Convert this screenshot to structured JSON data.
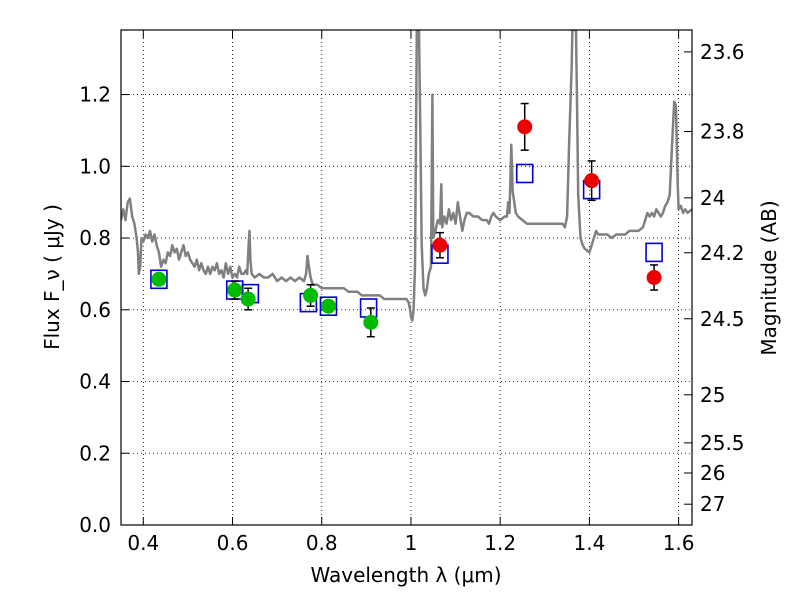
{
  "chart_data": {
    "type": "scatter",
    "title": "",
    "xlabel": "Wavelength  λ (μm)",
    "ylabel": "Flux  F_ν  ( μJy )",
    "y2label": "Magnitude (AB)",
    "xlim": [
      0.35,
      1.63
    ],
    "ylim": [
      0.0,
      1.38
    ],
    "grid": true,
    "legend": "none",
    "x_ticks": [
      0.4,
      0.6,
      0.8,
      1.0,
      1.2,
      1.4,
      1.6
    ],
    "x_tick_labels": [
      "0.4",
      "0.6",
      "0.8",
      "1",
      "1.2",
      "1.4",
      "1.6"
    ],
    "y_ticks": [
      0.0,
      0.2,
      0.4,
      0.6,
      0.8,
      1.0,
      1.2
    ],
    "y_tick_labels": [
      "0.0",
      "0.2",
      "0.4",
      "0.6",
      "0.8",
      "1.0",
      "1.2"
    ],
    "y2_ticks": [
      {
        "label": "23.6",
        "flux": 1.319
      },
      {
        "label": "23.8",
        "flux": 1.097
      },
      {
        "label": "24",
        "flux": 0.912
      },
      {
        "label": "24.2",
        "flux": 0.759
      },
      {
        "label": "24.5",
        "flux": 0.575
      },
      {
        "label": "25",
        "flux": 0.363
      },
      {
        "label": "25.5",
        "flux": 0.229
      },
      {
        "label": "26",
        "flux": 0.145
      },
      {
        "label": "27",
        "flux": 0.058
      }
    ],
    "colors": {
      "model": "#808080",
      "model_points": "#0000dd",
      "green": "#00bb00",
      "red": "#ee0000",
      "error": "#000000"
    },
    "model_spectrum": [
      [
        0.35,
        0.85
      ],
      [
        0.355,
        0.88
      ],
      [
        0.36,
        0.85
      ],
      [
        0.365,
        0.9
      ],
      [
        0.37,
        0.91
      ],
      [
        0.375,
        0.86
      ],
      [
        0.38,
        0.84
      ],
      [
        0.385,
        0.8
      ],
      [
        0.388,
        0.76
      ],
      [
        0.39,
        0.7
      ],
      [
        0.393,
        0.72
      ],
      [
        0.396,
        0.8
      ],
      [
        0.4,
        0.79
      ],
      [
        0.405,
        0.81
      ],
      [
        0.41,
        0.8
      ],
      [
        0.415,
        0.82
      ],
      [
        0.42,
        0.79
      ],
      [
        0.425,
        0.81
      ],
      [
        0.43,
        0.78
      ],
      [
        0.435,
        0.76
      ],
      [
        0.44,
        0.72
      ],
      [
        0.445,
        0.74
      ],
      [
        0.45,
        0.73
      ],
      [
        0.455,
        0.76
      ],
      [
        0.46,
        0.75
      ],
      [
        0.465,
        0.78
      ],
      [
        0.47,
        0.76
      ],
      [
        0.475,
        0.77
      ],
      [
        0.48,
        0.74
      ],
      [
        0.485,
        0.76
      ],
      [
        0.49,
        0.78
      ],
      [
        0.495,
        0.75
      ],
      [
        0.5,
        0.76
      ],
      [
        0.505,
        0.74
      ],
      [
        0.51,
        0.73
      ],
      [
        0.515,
        0.72
      ],
      [
        0.52,
        0.74
      ],
      [
        0.525,
        0.71
      ],
      [
        0.53,
        0.73
      ],
      [
        0.535,
        0.71
      ],
      [
        0.54,
        0.7
      ],
      [
        0.545,
        0.72
      ],
      [
        0.55,
        0.7
      ],
      [
        0.555,
        0.72
      ],
      [
        0.56,
        0.71
      ],
      [
        0.565,
        0.73
      ],
      [
        0.57,
        0.7
      ],
      [
        0.575,
        0.71
      ],
      [
        0.58,
        0.69
      ],
      [
        0.585,
        0.73
      ],
      [
        0.59,
        0.7
      ],
      [
        0.595,
        0.72
      ],
      [
        0.6,
        0.69
      ],
      [
        0.605,
        0.7
      ],
      [
        0.61,
        0.69
      ],
      [
        0.615,
        0.72
      ],
      [
        0.62,
        0.7
      ],
      [
        0.625,
        0.7
      ],
      [
        0.63,
        0.71
      ],
      [
        0.633,
        0.7
      ],
      [
        0.636,
        0.78
      ],
      [
        0.638,
        0.82
      ],
      [
        0.64,
        0.74
      ],
      [
        0.643,
        0.7
      ],
      [
        0.65,
        0.69
      ],
      [
        0.66,
        0.7
      ],
      [
        0.67,
        0.69
      ],
      [
        0.68,
        0.69
      ],
      [
        0.69,
        0.7
      ],
      [
        0.7,
        0.68
      ],
      [
        0.71,
        0.69
      ],
      [
        0.72,
        0.68
      ],
      [
        0.73,
        0.69
      ],
      [
        0.74,
        0.68
      ],
      [
        0.75,
        0.69
      ],
      [
        0.76,
        0.68
      ],
      [
        0.765,
        0.7
      ],
      [
        0.768,
        0.75
      ],
      [
        0.77,
        0.73
      ],
      [
        0.775,
        0.69
      ],
      [
        0.78,
        0.67
      ],
      [
        0.79,
        0.67
      ],
      [
        0.8,
        0.66
      ],
      [
        0.81,
        0.66
      ],
      [
        0.82,
        0.66
      ],
      [
        0.83,
        0.66
      ],
      [
        0.84,
        0.66
      ],
      [
        0.85,
        0.66
      ],
      [
        0.86,
        0.65
      ],
      [
        0.87,
        0.65
      ],
      [
        0.88,
        0.65
      ],
      [
        0.89,
        0.64
      ],
      [
        0.9,
        0.64
      ],
      [
        0.91,
        0.64
      ],
      [
        0.92,
        0.64
      ],
      [
        0.93,
        0.64
      ],
      [
        0.94,
        0.63
      ],
      [
        0.95,
        0.63
      ],
      [
        0.96,
        0.63
      ],
      [
        0.97,
        0.63
      ],
      [
        0.98,
        0.63
      ],
      [
        0.99,
        0.63
      ],
      [
        0.995,
        0.62
      ],
      [
        0.998,
        0.6
      ],
      [
        1.0,
        0.58
      ],
      [
        1.003,
        0.57
      ],
      [
        1.006,
        0.6
      ],
      [
        1.009,
        0.72
      ],
      [
        1.011,
        1.05
      ],
      [
        1.013,
        1.38
      ],
      [
        1.018,
        1.38
      ],
      [
        1.021,
        1.1
      ],
      [
        1.024,
        0.78
      ],
      [
        1.028,
        0.66
      ],
      [
        1.032,
        0.64
      ],
      [
        1.036,
        0.66
      ],
      [
        1.04,
        0.7
      ],
      [
        1.045,
        0.72
      ],
      [
        1.048,
        1.2
      ],
      [
        1.05,
        0.8
      ],
      [
        1.055,
        0.82
      ],
      [
        1.06,
        0.85
      ],
      [
        1.065,
        0.84
      ],
      [
        1.068,
        0.95
      ],
      [
        1.07,
        0.83
      ],
      [
        1.075,
        0.86
      ],
      [
        1.08,
        0.84
      ],
      [
        1.085,
        0.88
      ],
      [
        1.09,
        0.85
      ],
      [
        1.095,
        0.87
      ],
      [
        1.1,
        0.84
      ],
      [
        1.105,
        0.9
      ],
      [
        1.11,
        0.86
      ],
      [
        1.115,
        0.82
      ],
      [
        1.12,
        0.85
      ],
      [
        1.125,
        0.87
      ],
      [
        1.13,
        0.87
      ],
      [
        1.14,
        0.86
      ],
      [
        1.15,
        0.86
      ],
      [
        1.16,
        0.85
      ],
      [
        1.17,
        0.85
      ],
      [
        1.175,
        0.84
      ],
      [
        1.18,
        0.86
      ],
      [
        1.185,
        0.87
      ],
      [
        1.19,
        0.86
      ],
      [
        1.2,
        0.85
      ],
      [
        1.21,
        0.86
      ],
      [
        1.215,
        0.86
      ],
      [
        1.218,
        0.9
      ],
      [
        1.221,
        0.87
      ],
      [
        1.225,
        1.06
      ],
      [
        1.228,
        0.93
      ],
      [
        1.235,
        0.87
      ],
      [
        1.24,
        0.86
      ],
      [
        1.26,
        0.84
      ],
      [
        1.28,
        0.84
      ],
      [
        1.3,
        0.84
      ],
      [
        1.32,
        0.84
      ],
      [
        1.34,
        0.84
      ],
      [
        1.345,
        0.83
      ],
      [
        1.35,
        0.86
      ],
      [
        1.355,
        1.08
      ],
      [
        1.36,
        1.27
      ],
      [
        1.362,
        1.38
      ],
      [
        1.37,
        1.38
      ],
      [
        1.372,
        1.2
      ],
      [
        1.375,
        0.92
      ],
      [
        1.38,
        0.8
      ],
      [
        1.385,
        0.78
      ],
      [
        1.39,
        0.77
      ],
      [
        1.4,
        0.76
      ],
      [
        1.405,
        0.78
      ],
      [
        1.41,
        0.8
      ],
      [
        1.415,
        0.82
      ],
      [
        1.42,
        0.81
      ],
      [
        1.43,
        0.81
      ],
      [
        1.44,
        0.81
      ],
      [
        1.45,
        0.8
      ],
      [
        1.46,
        0.81
      ],
      [
        1.47,
        0.81
      ],
      [
        1.48,
        0.81
      ],
      [
        1.49,
        0.82
      ],
      [
        1.5,
        0.82
      ],
      [
        1.51,
        0.82
      ],
      [
        1.52,
        0.83
      ],
      [
        1.525,
        0.85
      ],
      [
        1.53,
        0.87
      ],
      [
        1.535,
        0.86
      ],
      [
        1.54,
        0.87
      ],
      [
        1.545,
        0.86
      ],
      [
        1.55,
        0.88
      ],
      [
        1.555,
        0.87
      ],
      [
        1.56,
        0.86
      ],
      [
        1.565,
        0.87
      ],
      [
        1.57,
        0.89
      ],
      [
        1.575,
        0.9
      ],
      [
        1.58,
        0.92
      ],
      [
        1.585,
        1.05
      ],
      [
        1.59,
        1.18
      ],
      [
        1.594,
        1.17
      ],
      [
        1.598,
        0.95
      ],
      [
        1.6,
        0.88
      ],
      [
        1.605,
        0.89
      ],
      [
        1.61,
        0.87
      ],
      [
        1.615,
        0.88
      ],
      [
        1.62,
        0.87
      ],
      [
        1.63,
        0.88
      ]
    ],
    "model_photometry": [
      {
        "x": 0.435,
        "y": 0.685
      },
      {
        "x": 0.605,
        "y": 0.655
      },
      {
        "x": 0.64,
        "y": 0.645
      },
      {
        "x": 0.77,
        "y": 0.62
      },
      {
        "x": 0.815,
        "y": 0.61
      },
      {
        "x": 0.905,
        "y": 0.605
      },
      {
        "x": 1.065,
        "y": 0.755
      },
      {
        "x": 1.255,
        "y": 0.98
      },
      {
        "x": 1.405,
        "y": 0.935
      },
      {
        "x": 1.545,
        "y": 0.76
      }
    ],
    "observed_optical": [
      {
        "x": 0.435,
        "y": 0.685,
        "err": 0.0
      },
      {
        "x": 0.605,
        "y": 0.655,
        "err": 0.025
      },
      {
        "x": 0.635,
        "y": 0.63,
        "err": 0.03
      },
      {
        "x": 0.775,
        "y": 0.64,
        "err": 0.03
      },
      {
        "x": 0.815,
        "y": 0.61,
        "err": 0.0
      },
      {
        "x": 0.91,
        "y": 0.565,
        "err": 0.04
      }
    ],
    "observed_nir": [
      {
        "x": 1.065,
        "y": 0.78,
        "err": 0.035
      },
      {
        "x": 1.255,
        "y": 1.11,
        "err": 0.065
      },
      {
        "x": 1.405,
        "y": 0.96,
        "err": 0.055
      },
      {
        "x": 1.545,
        "y": 0.69,
        "err": 0.035
      }
    ]
  }
}
